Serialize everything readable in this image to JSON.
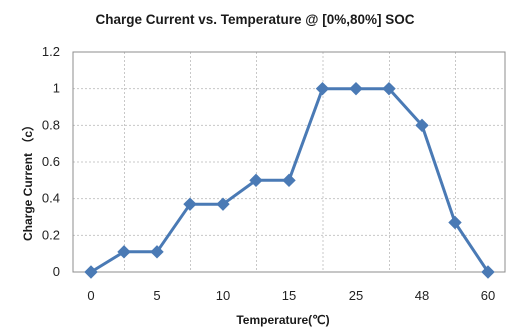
{
  "chart_data": {
    "type": "line",
    "title": "Charge Current vs. Temperature @ [0%,80%] SOC",
    "xlabel": "Temperature(℃)",
    "ylabel": "Charge Current （c）",
    "x_tick_labels": [
      "0",
      "5",
      "10",
      "15",
      "25",
      "48",
      "60"
    ],
    "y_tick_labels": [
      "0",
      "0.2",
      "0.4",
      "0.6",
      "0.8",
      "1",
      "1.2"
    ],
    "ylim": [
      0,
      1.2
    ],
    "grid": true,
    "legend": "none",
    "series": [
      {
        "color": "#4a7ab5",
        "marker": "diamond",
        "x": [
          0,
          2.5,
          5,
          7.5,
          10,
          12.5,
          15,
          20,
          25,
          36.5,
          48,
          54,
          60
        ],
        "values": [
          0,
          0.11,
          0.11,
          0.37,
          0.37,
          0.5,
          0.5,
          1.0,
          1.0,
          1.0,
          0.8,
          0.27,
          0
        ]
      }
    ]
  }
}
